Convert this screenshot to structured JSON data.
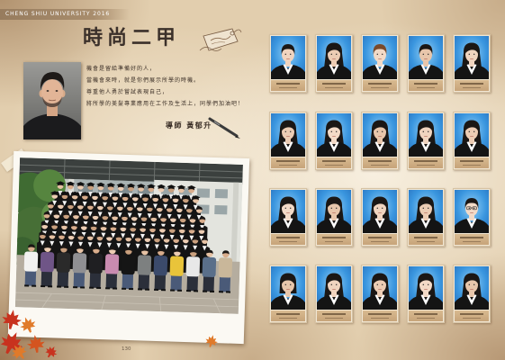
{
  "header": {
    "university_label": "CHENG SHIU UNIVERSITY 2016"
  },
  "class_title": "時尚二甲",
  "teacher": {
    "message": [
      "機會是留給準備好的人，",
      "當機會來時，就是你們展示所學的時機。",
      "尊重他人勇於嘗試表現自己，",
      "將所學的美髮專業應用在工作及生活上，同學們加油吧！"
    ],
    "signature": "導師 黃郁升"
  },
  "page_number": "130",
  "icons": {
    "pen": "pen-icon",
    "leaf": "maple-leaf-icon",
    "tag": "tag-ornament-icon"
  },
  "colors": {
    "header_bar": "#a08667",
    "title_text": "#3b302a",
    "portrait_background": "#3f9be3",
    "gown": "#141414",
    "name_plate": "#c7a47a",
    "leaf_red": "#c8321e",
    "leaf_orange": "#e07a2a"
  }
}
